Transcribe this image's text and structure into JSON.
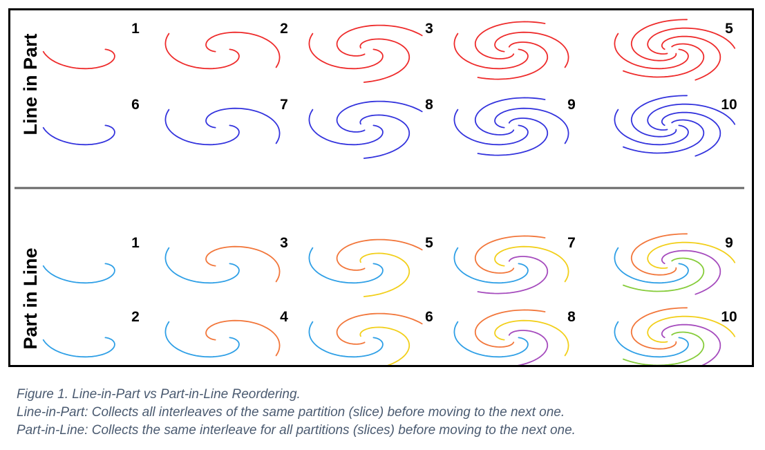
{
  "colors": {
    "line_in_part_row1": "#ee2b2b",
    "line_in_part_row2": "#3333dd",
    "part_blue": "#2e9fe6",
    "part_orange": "#f2763a",
    "part_yellow": "#f2cf1a",
    "part_purple": "#a54bbd",
    "part_green": "#86cc3a",
    "divider": "#666666"
  },
  "sections": [
    {
      "label": "Line in Part",
      "rows": [
        {
          "numbers": [
            "1",
            "2",
            "3",
            "",
            "5"
          ],
          "arms": [
            1,
            2,
            3,
            4,
            5
          ],
          "palette": [
            "line_in_part_row1"
          ]
        },
        {
          "numbers": [
            "6",
            "7",
            "8",
            "9",
            "10"
          ],
          "arms": [
            1,
            2,
            3,
            4,
            5
          ],
          "palette": [
            "line_in_part_row2"
          ]
        }
      ]
    },
    {
      "label": "Part in Line",
      "rows": [
        {
          "numbers": [
            "1",
            "3",
            "5",
            "7",
            "9"
          ],
          "arms": [
            1,
            2,
            3,
            4,
            5
          ],
          "palette": [
            "part_blue",
            "part_orange",
            "part_yellow",
            "part_purple",
            "part_green"
          ]
        },
        {
          "numbers": [
            "2",
            "4",
            "6",
            "8",
            "10"
          ],
          "arms": [
            1,
            2,
            3,
            4,
            5
          ],
          "palette": [
            "part_blue",
            "part_orange",
            "part_yellow",
            "part_purple",
            "part_green"
          ]
        }
      ]
    }
  ],
  "caption": {
    "line1": "Figure 1. Line-in-Part vs Part-in-Line Reordering.",
    "line2": "Line-in-Part: Collects all interleaves of the same partition (slice) before moving to the next one.",
    "line3": "Part-in-Line: Collects the same interleave for all partitions (slices) before moving to the next one."
  }
}
